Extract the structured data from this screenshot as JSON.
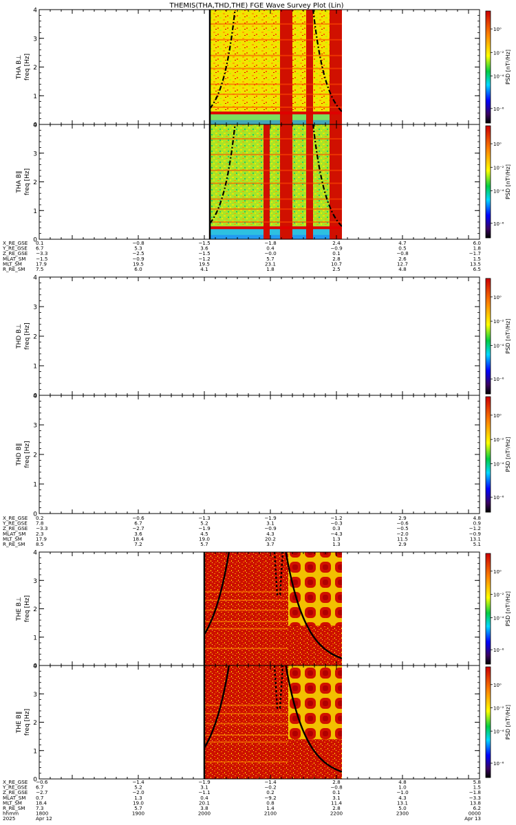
{
  "title": "THEMIS(THA,THD,THE) FGE Wave Survey Plot (Lin)",
  "colorbar": {
    "label": "PSD [nT²/Hz]",
    "tick_labels": [
      "10⁰",
      "10⁻²",
      "10⁻⁴",
      "10⁻⁶"
    ]
  },
  "chart_data": {
    "type": "heatmap",
    "x_ticks": [
      "1800",
      "1900",
      "2000",
      "2100",
      "2200",
      "2300",
      "0000"
    ],
    "y_ticks": [
      "0",
      "1",
      "2",
      "3",
      "4"
    ],
    "ylim": [
      0,
      4
    ],
    "xlim_hhmm": [
      "1730",
      "0010"
    ],
    "panels": [
      {
        "id": "tha-bl",
        "probe": "THA",
        "ylabel": "THA B⊥",
        "yunit": "freq [Hz]",
        "data_start_hhmm": "2005",
        "data_end_hhmm": "2205",
        "level": "medium"
      },
      {
        "id": "tha-bpar",
        "probe": "THA",
        "ylabel": "THA B∥",
        "yunit": "freq [Hz]",
        "data_start_hhmm": "2005",
        "data_end_hhmm": "2205",
        "level": "low"
      },
      {
        "id": "thd-bl",
        "probe": "THD",
        "ylabel": "THD B⊥",
        "yunit": "freq [Hz]",
        "data_start_hhmm": null,
        "data_end_hhmm": null,
        "level": "none"
      },
      {
        "id": "thd-bpar",
        "probe": "THD",
        "ylabel": "THD B∥",
        "yunit": "freq [Hz]",
        "data_start_hhmm": null,
        "data_end_hhmm": null,
        "level": "none"
      },
      {
        "id": "the-bl",
        "probe": "THE",
        "ylabel": "THE B⊥",
        "yunit": "freq [Hz]",
        "data_start_hhmm": "2000",
        "data_end_hhmm": "2205",
        "level": "high"
      },
      {
        "id": "the-bpar",
        "probe": "THE",
        "ylabel": "THE B∥",
        "yunit": "freq [Hz]",
        "data_start_hhmm": "2000",
        "data_end_hhmm": "2205",
        "level": "high"
      }
    ],
    "ephemeris": [
      {
        "probe": "THA",
        "rows": [
          {
            "label": "X_RE_GSE",
            "values": [
              "0.1",
              "−0.8",
              "−1.5",
              "−1.8",
              "2.4",
              "4.7",
              "6.0"
            ]
          },
          {
            "label": "Y_RE_GSE",
            "values": [
              "6.7",
              "5.3",
              "3.6",
              "0.4",
              "−0.9",
              "0.5",
              "1.8"
            ]
          },
          {
            "label": "Z_RE_GSE",
            "values": [
              "−3.3",
              "−2.5",
              "−1.5",
              "−0.0",
              "0.1",
              "−0.8",
              "−1.7"
            ]
          },
          {
            "label": "MLAT_SM",
            "values": [
              "−1.5",
              "−0.9",
              "−1.2",
              "5.7",
              "2.8",
              "2.6",
              "1.5"
            ]
          },
          {
            "label": "MLT_SM",
            "values": [
              "17.9",
              "19.5",
              "19.5",
              "23.1",
              "10.7",
              "12.7",
              "13.5"
            ]
          },
          {
            "label": "R_RE_SM",
            "values": [
              "7.5",
              "6.0",
              "4.1",
              "1.8",
              "2.5",
              "4.8",
              "6.5"
            ]
          }
        ]
      },
      {
        "probe": "THD",
        "rows": [
          {
            "label": "X_RE_GSE",
            "values": [
              "0.2",
              "−0.6",
              "−1.3",
              "−1.9",
              "−1.2",
              "2.9",
              "4.8"
            ]
          },
          {
            "label": "Y_RE_GSE",
            "values": [
              "7.8",
              "6.7",
              "5.2",
              "3.1",
              "−0.3",
              "−0.6",
              "0.9"
            ]
          },
          {
            "label": "Z_RE_GSE",
            "values": [
              "−3.3",
              "−2.7",
              "−1.9",
              "−0.9",
              "0.3",
              "−0.5",
              "−1.2"
            ]
          },
          {
            "label": "MLAT_SM",
            "values": [
              "2.3",
              "3.6",
              "4.5",
              "4.3",
              "−4.3",
              "−2.0",
              "−0.9"
            ]
          },
          {
            "label": "MLT_SM",
            "values": [
              "17.9",
              "18.4",
              "19.0",
              "20.2",
              "1.3",
              "11.5",
              "13.1"
            ]
          },
          {
            "label": "R_RE_SM",
            "values": [
              "8.5",
              "7.2",
              "5.7",
              "3.7",
              "1.3",
              "2.9",
              "5.1"
            ]
          }
        ]
      },
      {
        "probe": "THE",
        "rows": [
          {
            "label": "X_RE_GSE",
            "values": [
              "−0.6",
              "−1.4",
              "−1.9",
              "−1.4",
              "2.8",
              "4.8",
              "5.8"
            ]
          },
          {
            "label": "Y_RE_GSE",
            "values": [
              "6.7",
              "5.2",
              "3.1",
              "−0.2",
              "−0.8",
              "1.0",
              "1.5"
            ]
          },
          {
            "label": "Z_RE_GSE",
            "values": [
              "−2.7",
              "−2.0",
              "−1.1",
              "0.2",
              "0.1",
              "−1.0",
              "−1.8"
            ]
          },
          {
            "label": "MLAT_SM",
            "values": [
              "0.7",
              "1.3",
              "0.4",
              "−9.2",
              "3.1",
              "4.3",
              "−3.3"
            ]
          },
          {
            "label": "MLT_SM",
            "values": [
              "18.4",
              "19.0",
              "20.1",
              "0.8",
              "11.4",
              "13.1",
              "13.8"
            ]
          },
          {
            "label": "R_RE_SM",
            "values": [
              "7.3",
              "5.7",
              "3.8",
              "1.4",
              "2.8",
              "5.0",
              "6.2"
            ]
          },
          {
            "label": "hhmm",
            "values": [
              "1800",
              "1900",
              "2000",
              "2100",
              "2200",
              "2300",
              "0000"
            ]
          },
          {
            "label": "2025",
            "values": [
              "Apr 12",
              "",
              "",
              "",
              "",
              "",
              "Apr 13"
            ]
          }
        ]
      }
    ]
  }
}
